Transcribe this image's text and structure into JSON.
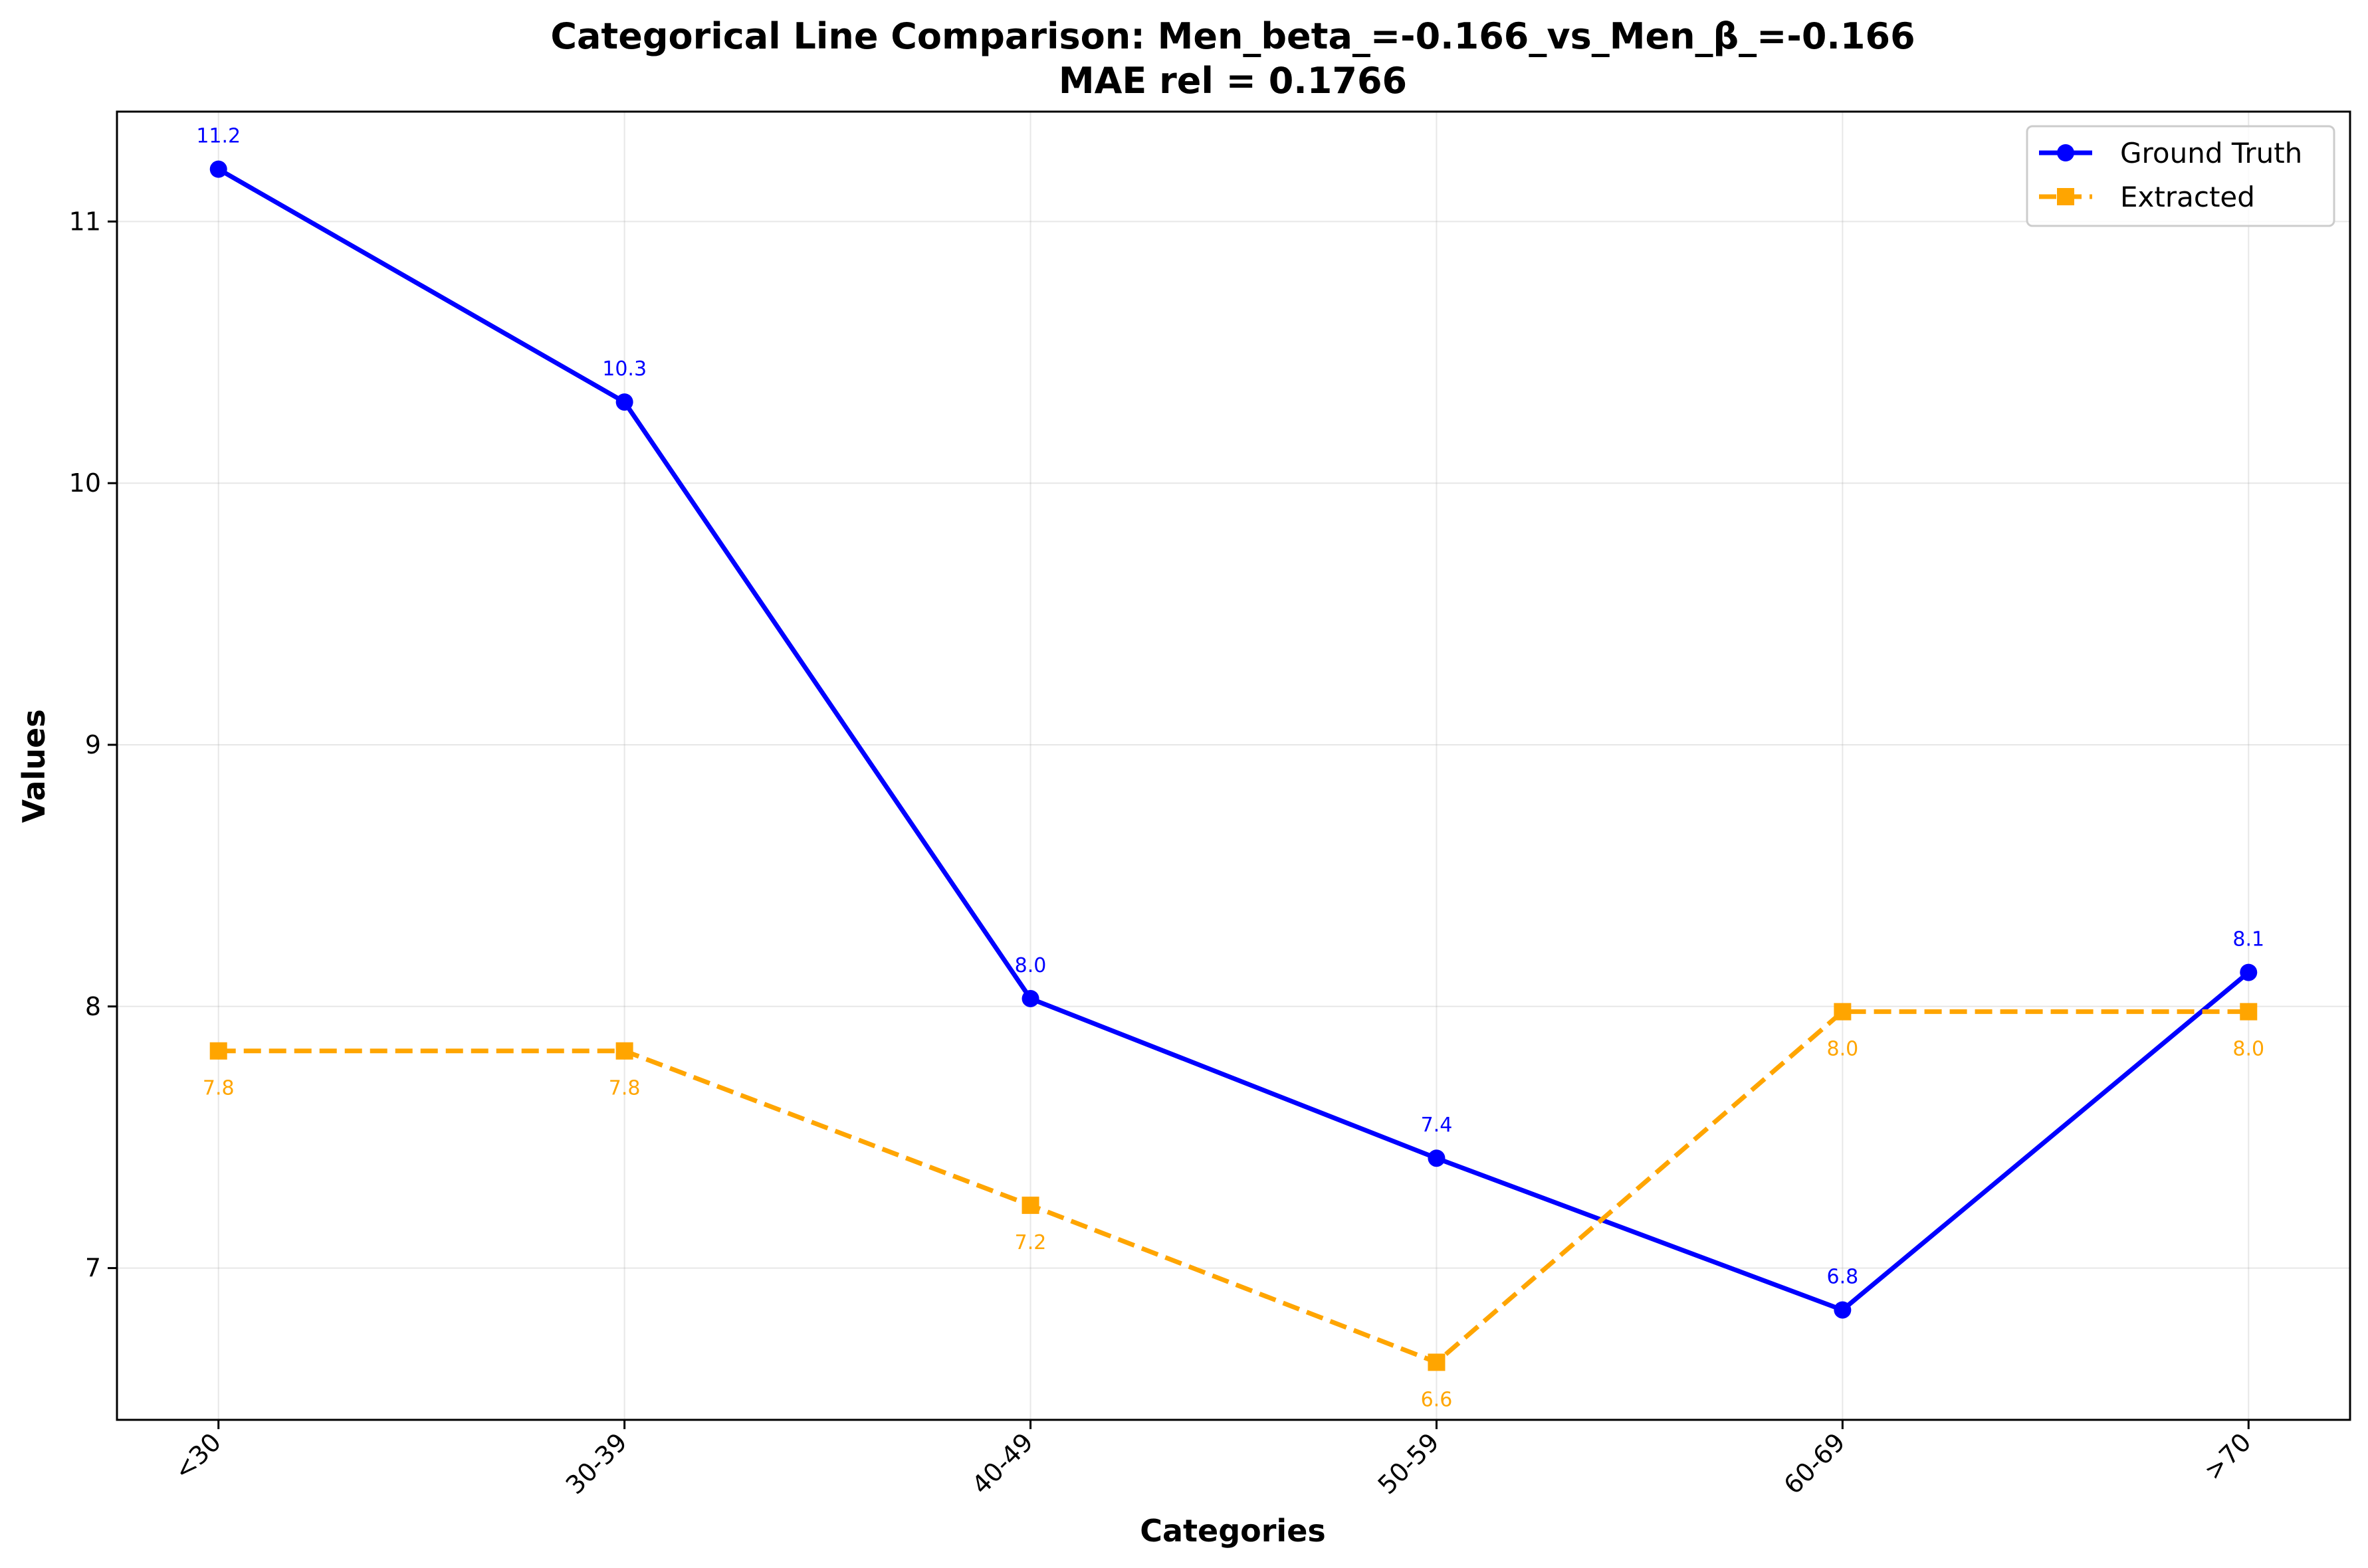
{
  "chart_data": {
    "type": "line",
    "title": "Categorical Line Comparison: Men_beta_=-0.166_vs_Men_β_=-0.166",
    "subtitle": "MAE rel = 0.1766",
    "xlabel": "Categories",
    "ylabel": "Values",
    "categories": [
      "<30",
      "30-39",
      "40-49",
      "50-59",
      "60-69",
      ">70"
    ],
    "ylim": [
      6.42,
      11.42
    ],
    "yticks": [
      7,
      8,
      9,
      10,
      11
    ],
    "grid": true,
    "legend_position": "top-right",
    "series": [
      {
        "name": "Ground Truth",
        "color": "#0000ff",
        "line_style": "solid",
        "marker": "circle",
        "values": [
          11.2,
          10.31,
          8.03,
          7.42,
          6.84,
          8.13
        ],
        "labels": [
          "11.2",
          "10.3",
          "8.0",
          "7.4",
          "6.8",
          "8.1"
        ],
        "label_position": "above"
      },
      {
        "name": "Extracted",
        "color": "#ffa500",
        "line_style": "dashed",
        "marker": "square",
        "values": [
          7.83,
          7.83,
          7.24,
          6.64,
          7.98,
          7.98
        ],
        "labels": [
          "7.8",
          "7.8",
          "7.2",
          "6.6",
          "8.0",
          "8.0"
        ],
        "label_position": "below"
      }
    ]
  }
}
